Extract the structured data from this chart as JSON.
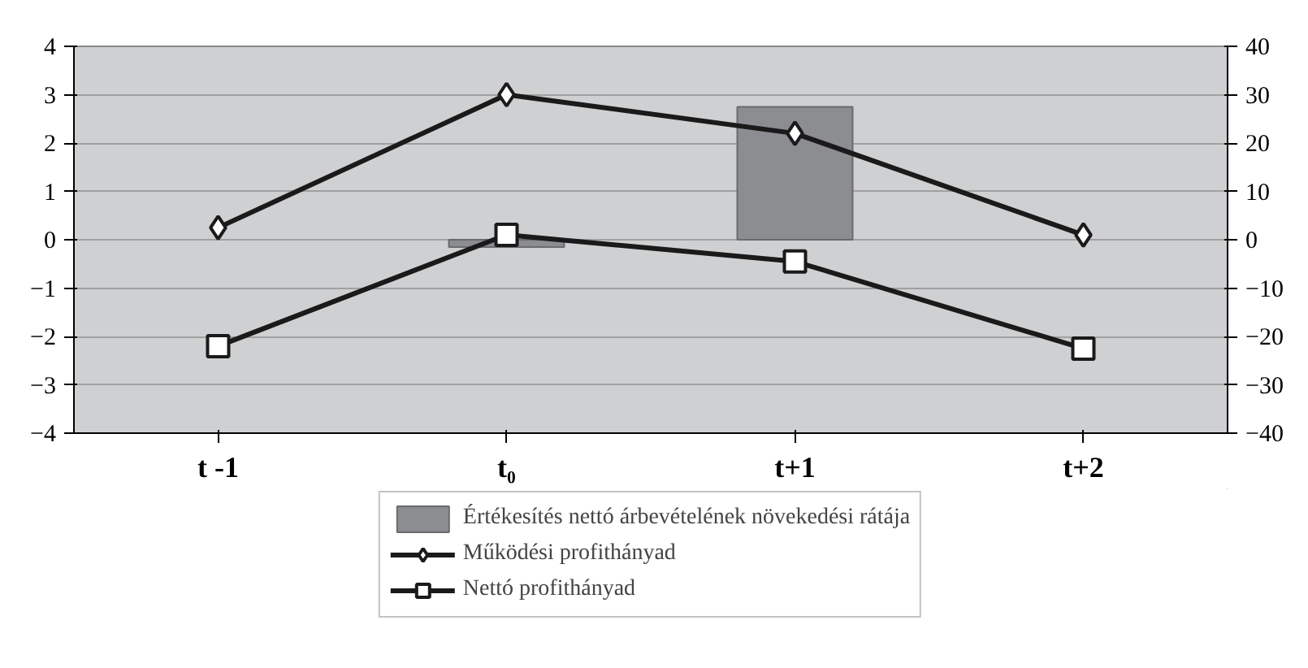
{
  "chart_data": {
    "type": "bar",
    "categories": [
      "t -1",
      "t₀",
      "t+1",
      "t+2"
    ],
    "ylim": [
      -4,
      4
    ],
    "yticks": [
      -4,
      -3,
      -2,
      -1,
      0,
      1,
      2,
      3,
      4
    ],
    "y2lim": [
      -40,
      40
    ],
    "y2ticks": [
      -40,
      -30,
      -20,
      -10,
      0,
      10,
      20,
      30,
      40
    ],
    "grid": "y",
    "legend": "bottom",
    "series": [
      {
        "name": "Értékesítés nettó árbevételének növekedési rátája",
        "color": "#8c8d90",
        "values": [
          null,
          -0.15,
          2.75,
          null
        ]
      },
      {
        "name": "Működési profithányad",
        "type": "line",
        "axis": "y2",
        "marker": "diamond",
        "color": "#1a1a1a",
        "values": [
          2.5,
          30,
          22,
          1
        ]
      },
      {
        "name": "Nettó profithányad",
        "type": "line",
        "axis": "y2",
        "marker": "square",
        "color": "#1a1a1a",
        "values": [
          -22,
          1,
          -4.5,
          -22.5
        ]
      }
    ]
  }
}
